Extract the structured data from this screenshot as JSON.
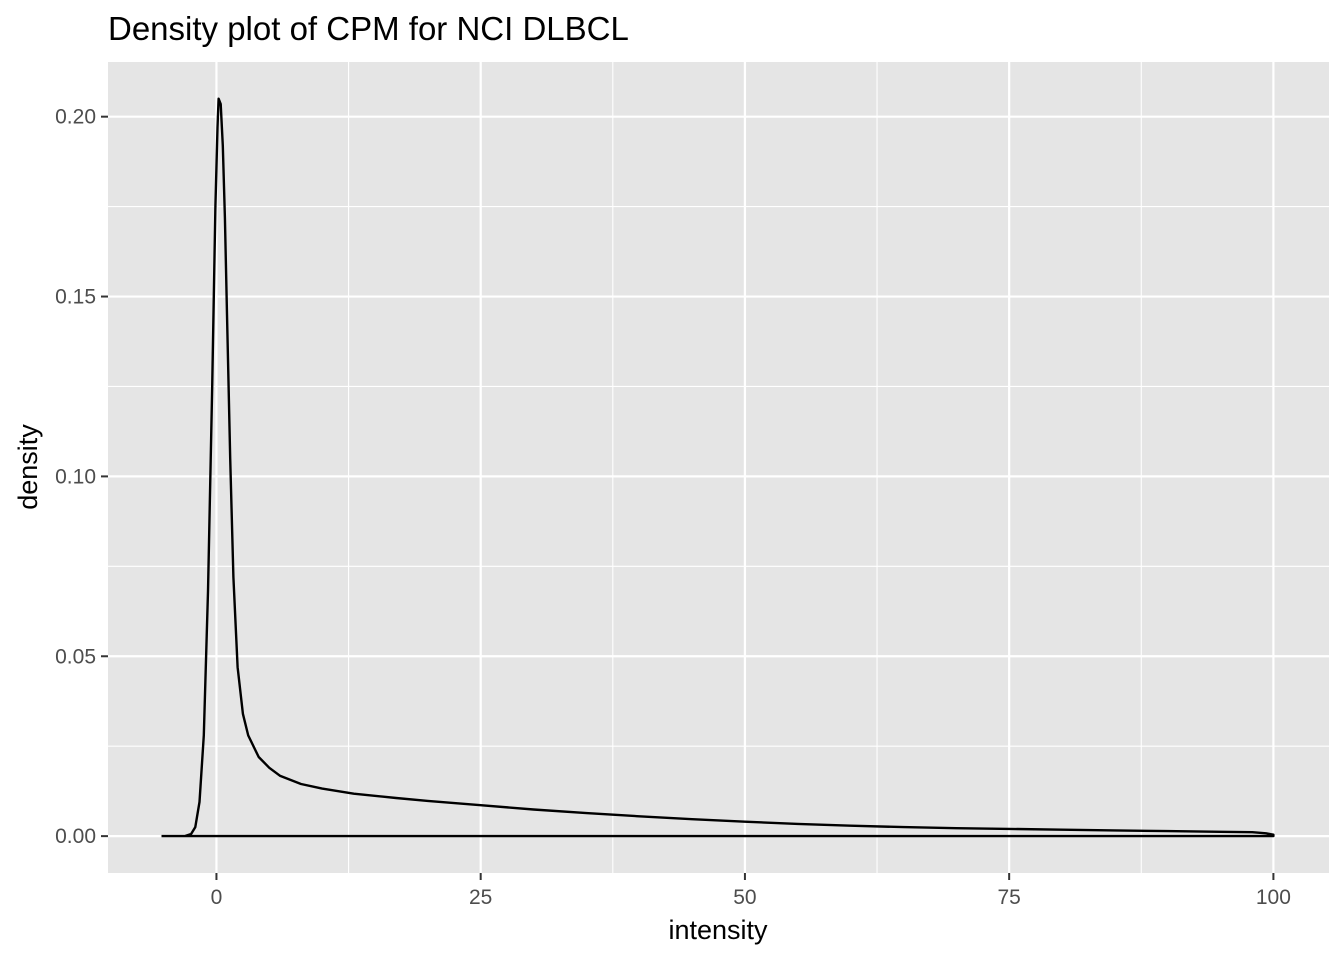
{
  "chart_data": {
    "type": "line",
    "title": "Density plot of CPM for NCI DLBCL",
    "xlabel": "intensity",
    "ylabel": "density",
    "xlim": [
      -10.26,
      105.26
    ],
    "ylim": [
      -0.01025,
      0.2152
    ],
    "x_ticks": [
      0,
      25,
      50,
      75,
      100
    ],
    "x_tick_labels": [
      "0",
      "25",
      "50",
      "75",
      "100"
    ],
    "y_ticks": [
      0.0,
      0.05,
      0.1,
      0.15,
      0.2
    ],
    "y_tick_labels": [
      "0.00",
      "0.05",
      "0.10",
      "0.15",
      "0.20"
    ],
    "grid": true,
    "legend": "none",
    "colors": {
      "panel": "#e5e5e5",
      "grid": "#ffffff",
      "line": "#000000",
      "tick": "#333333"
    },
    "series": [
      {
        "x": [
          -5.2,
          -3.0,
          -2.4,
          -2.0,
          -1.6,
          -1.2,
          -0.8,
          -0.4,
          -0.1,
          0.1,
          0.2,
          0.4,
          0.6,
          0.8,
          1.0,
          1.3,
          1.6,
          2.0,
          2.5,
          3.0,
          4.0,
          5.0,
          6.0,
          8.0,
          10.0,
          13.0,
          17.0,
          20.0,
          25.0,
          30.0,
          35.0,
          40.0,
          45.0,
          50.0,
          55.0,
          60.0,
          65.0,
          70.0,
          75.0,
          80.0,
          85.0,
          90.0,
          95.0,
          98.0,
          99.3,
          100.0,
          100.0,
          80.0,
          60.0,
          40.0,
          20.0,
          0.0,
          -5.2
        ],
        "y": [
          0.0,
          0.0,
          0.0006,
          0.0025,
          0.0095,
          0.028,
          0.068,
          0.125,
          0.175,
          0.197,
          0.205,
          0.2035,
          0.192,
          0.172,
          0.145,
          0.105,
          0.072,
          0.047,
          0.034,
          0.028,
          0.022,
          0.019,
          0.0168,
          0.0145,
          0.0132,
          0.0118,
          0.0106,
          0.0098,
          0.0086,
          0.0074,
          0.0064,
          0.0055,
          0.0047,
          0.004,
          0.0034,
          0.0029,
          0.0025,
          0.0022,
          0.002,
          0.0018,
          0.0016,
          0.0014,
          0.0012,
          0.0011,
          0.0008,
          0.0004,
          0.0,
          0.0,
          0.0,
          0.0,
          0.0,
          0.0,
          0.0
        ]
      }
    ]
  }
}
